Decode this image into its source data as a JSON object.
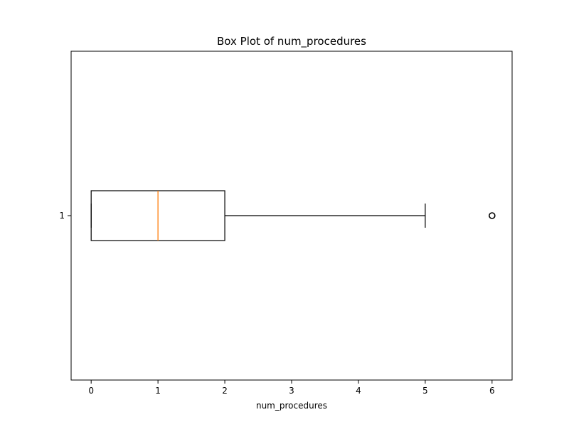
{
  "chart_data": {
    "type": "box",
    "title": "Box Plot of num_procedures",
    "xlabel": "num_procedures",
    "ylabel": "",
    "orientation": "horizontal",
    "xlim": [
      -0.3,
      6.3
    ],
    "x_ticks": [
      "0",
      "1",
      "2",
      "3",
      "4",
      "5",
      "6"
    ],
    "y_ticks": [
      "1"
    ],
    "grid": false,
    "series": [
      {
        "position": 1,
        "whisker_low": 0,
        "q1": 0,
        "median": 1,
        "q3": 2,
        "whisker_high": 5,
        "outliers": [
          6
        ]
      }
    ],
    "colors": {
      "box": "#000000",
      "median": "#ff7f0e",
      "outlier": "#000000"
    }
  }
}
